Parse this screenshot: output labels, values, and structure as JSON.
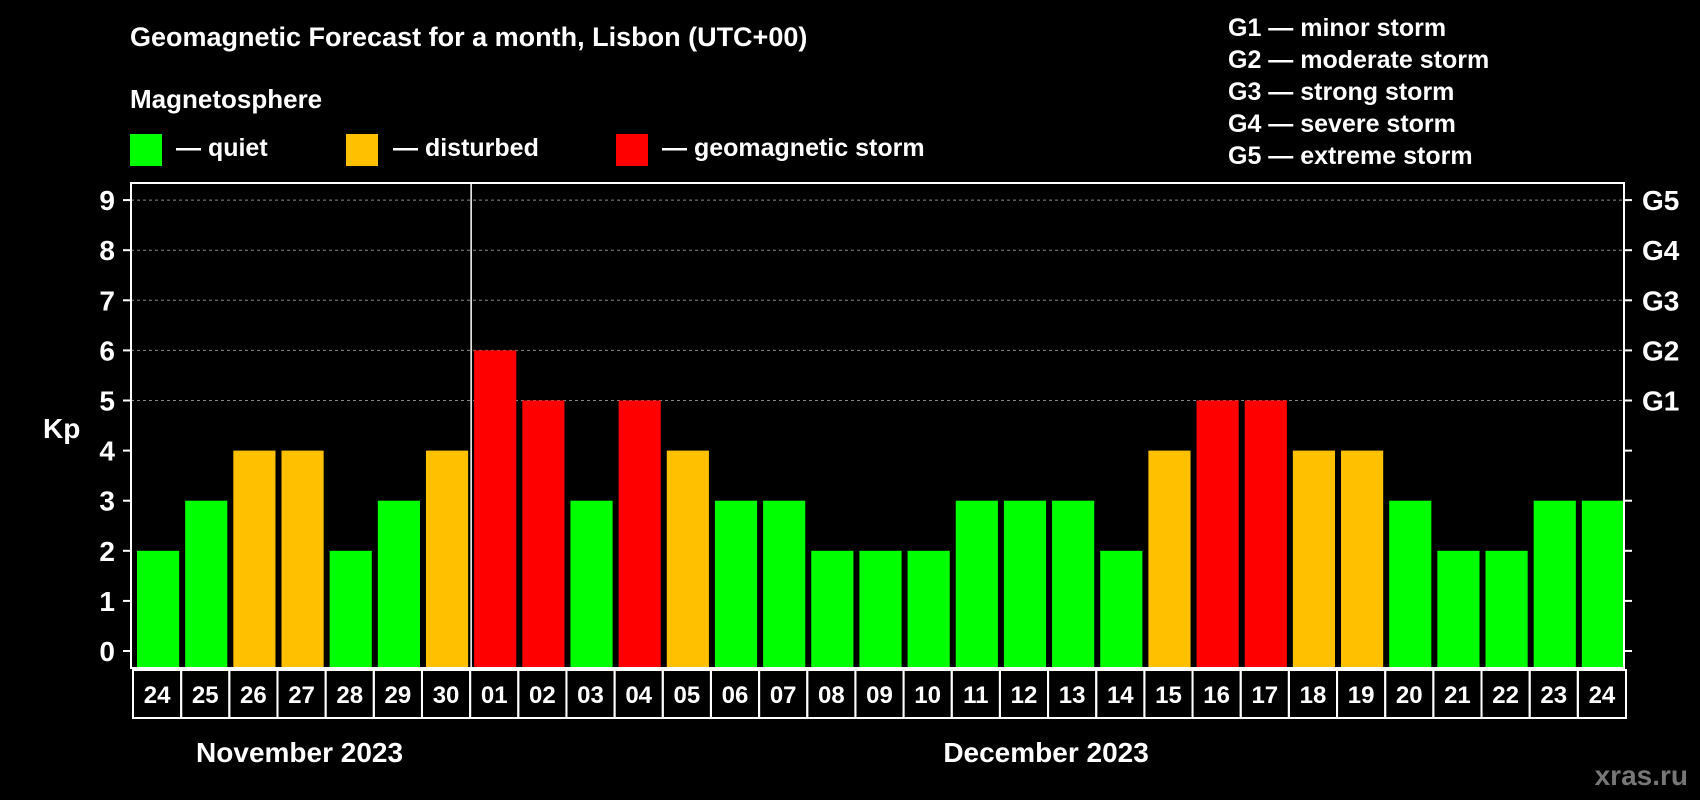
{
  "chart_data": {
    "type": "bar",
    "title": "Geomagnetic Forecast for a month, Lisbon (UTC+00)",
    "ylabel": "Kp",
    "ylim": [
      0,
      9
    ],
    "yticks": [
      "0",
      "1",
      "2",
      "3",
      "4",
      "5",
      "6",
      "7",
      "8",
      "9"
    ],
    "right_ticks": [
      {
        "kp": 5,
        "label": "G1"
      },
      {
        "kp": 6,
        "label": "G2"
      },
      {
        "kp": 7,
        "label": "G3"
      },
      {
        "kp": 8,
        "label": "G4"
      },
      {
        "kp": 9,
        "label": "G5"
      }
    ],
    "categories": [
      "24",
      "25",
      "26",
      "27",
      "28",
      "29",
      "30",
      "01",
      "02",
      "03",
      "04",
      "05",
      "06",
      "07",
      "08",
      "09",
      "10",
      "11",
      "12",
      "13",
      "14",
      "15",
      "16",
      "17",
      "18",
      "19",
      "20",
      "21",
      "22",
      "23",
      "24"
    ],
    "values": [
      2,
      3,
      4,
      4,
      2,
      3,
      4,
      6,
      5,
      3,
      5,
      4,
      3,
      3,
      2,
      2,
      2,
      3,
      3,
      3,
      2,
      4,
      5,
      5,
      4,
      4,
      3,
      2,
      2,
      3,
      3
    ],
    "months": [
      {
        "label": "November 2023",
        "start": 0,
        "end": 6
      },
      {
        "label": "December 2023",
        "start": 7,
        "end": 30
      }
    ],
    "grid": "dashed horizontal",
    "colors": {
      "quiet": "#00ff00",
      "disturbed": "#ffc000",
      "storm": "#ff0000"
    }
  },
  "legend": {
    "heading": "Magnetosphere",
    "quiet": "— quiet",
    "disturbed": "— disturbed",
    "storm": "— geomagnetic storm"
  },
  "g_legend": [
    "G1 — minor storm",
    "G2 — moderate storm",
    "G3 — strong storm",
    "G4 — severe storm",
    "G5 — extreme storm"
  ],
  "watermark": "xras.ru"
}
